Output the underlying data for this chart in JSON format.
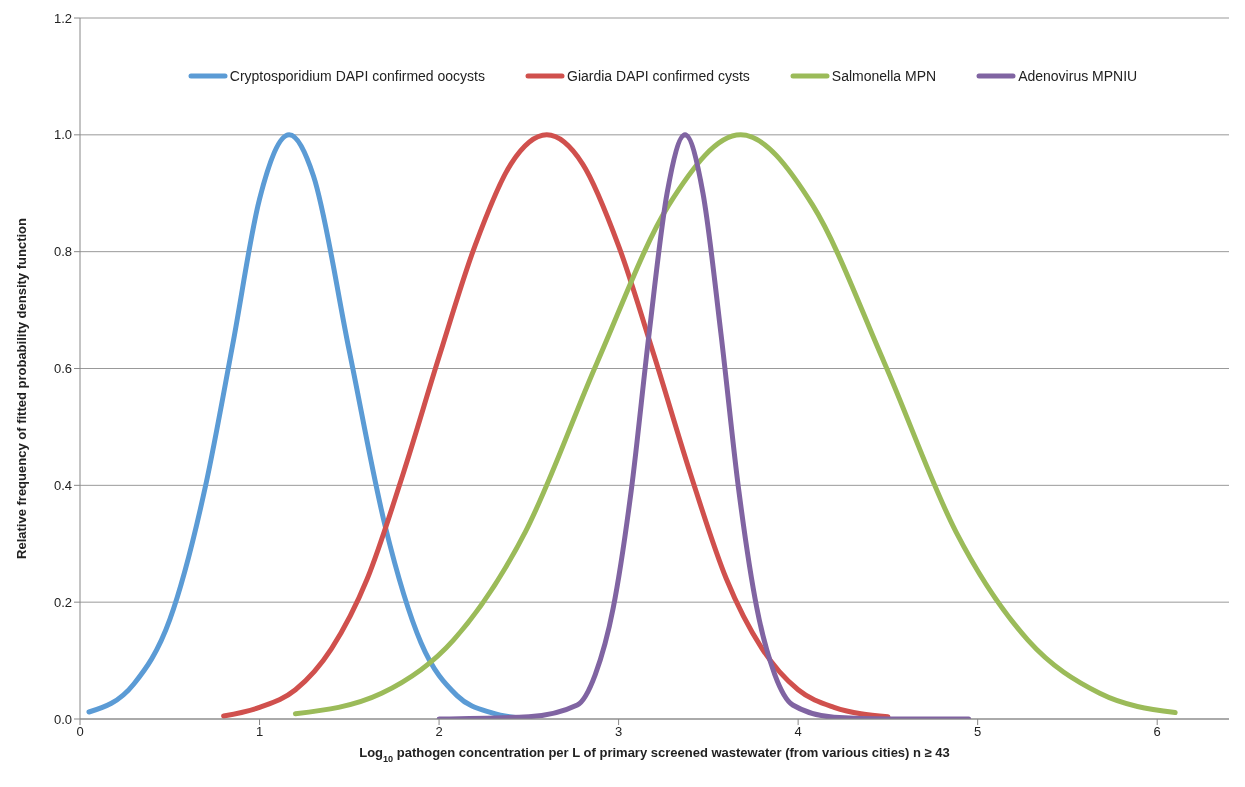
{
  "chart_data": {
    "type": "line",
    "xlabel": "Log$_{10}$ pathogen concentration per L of primary screened wastewater (from various cities) n ≥ 43",
    "ylabel": "Relative frequency  of fitted probability density function",
    "xlim": [
      0,
      6.4
    ],
    "xticks": [
      0,
      1,
      2,
      3,
      4,
      5,
      6
    ],
    "ylim": [
      0,
      1.2
    ],
    "yticks": [
      {
        "value": 0,
        "label": "0.0"
      },
      {
        "value": 0.2,
        "label": "0.2"
      },
      {
        "value": 0.4,
        "label": "0.4"
      },
      {
        "value": 0.6,
        "label": "0.6"
      },
      {
        "value": 0.8,
        "label": "0.8"
      },
      {
        "value": 1,
        "label": "1.0"
      },
      {
        "value": 1.2,
        "label": "1.2"
      }
    ],
    "grid": "y",
    "legend": "top",
    "marker": "none",
    "line_style": "solid",
    "series": [
      {
        "name": "Cryptosporidium DAPI confirmed oocysts",
        "color": "#5b9bd5",
        "x": [
          0.05,
          0.3,
          0.5,
          0.7,
          0.85,
          1.0,
          1.165,
          1.3,
          1.5,
          1.7,
          1.9,
          2.1,
          2.3,
          2.5
        ],
        "values": [
          0.012,
          0.06,
          0.17,
          0.4,
          0.64,
          0.89,
          1.0,
          0.93,
          0.63,
          0.33,
          0.13,
          0.04,
          0.01,
          0.0
        ]
      },
      {
        "name": "Giardia DAPI confirmed cysts",
        "color": "#d0504d",
        "x": [
          0.8,
          1.0,
          1.2,
          1.4,
          1.6,
          1.8,
          2.0,
          2.2,
          2.4,
          2.6,
          2.8,
          3.0,
          3.2,
          3.4,
          3.6,
          3.8,
          4.0,
          4.2,
          4.5
        ],
        "values": [
          0.005,
          0.02,
          0.05,
          0.12,
          0.24,
          0.42,
          0.62,
          0.81,
          0.95,
          1.0,
          0.95,
          0.81,
          0.62,
          0.42,
          0.24,
          0.12,
          0.05,
          0.02,
          0.004
        ]
      },
      {
        "name": "Salmonella MPN",
        "color": "#9bbb59",
        "x": [
          1.2,
          1.68,
          2.08,
          2.48,
          2.88,
          3.28,
          3.68,
          4.08,
          4.48,
          4.88,
          5.28,
          5.68,
          6.1
        ],
        "values": [
          0.009,
          0.044,
          0.135,
          0.32,
          0.61,
          0.88,
          1.0,
          0.88,
          0.61,
          0.32,
          0.135,
          0.044,
          0.011
        ]
      },
      {
        "name": "Adenovirus MPNIU",
        "color": "#8064a2",
        "x": [
          2.0,
          2.5,
          2.77,
          2.87,
          2.97,
          3.07,
          3.17,
          3.27,
          3.37,
          3.47,
          3.57,
          3.67,
          3.77,
          3.87,
          3.97,
          4.2,
          4.5,
          4.95
        ],
        "values": [
          0,
          0.004,
          0.024,
          0.076,
          0.19,
          0.39,
          0.66,
          0.9,
          1.0,
          0.9,
          0.66,
          0.39,
          0.19,
          0.076,
          0.024,
          0.003,
          0,
          0
        ]
      }
    ]
  }
}
